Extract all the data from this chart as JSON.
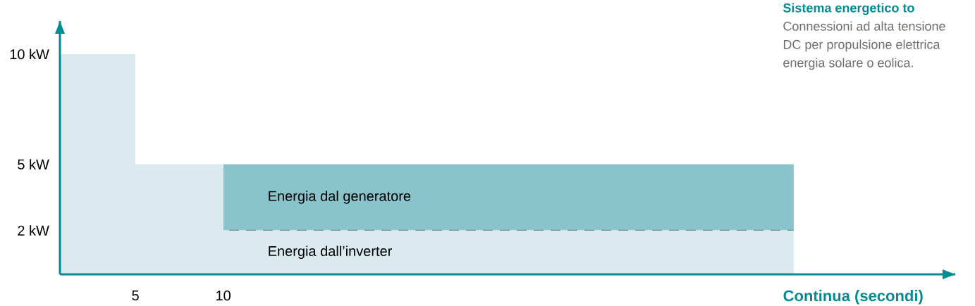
{
  "chart_data": {
    "type": "area",
    "stacked": true,
    "title": "Sistema energetico to",
    "annotations": [
      "Connessioni ad alta tensione",
      "DC per propulsione elettrica",
      "energia solare o eolica."
    ],
    "xlabel": "Continua (secondi)",
    "x": [
      0.7,
      5,
      10,
      42.5
    ],
    "series": [
      {
        "name": "Energia dall’inverter",
        "color": "#dbeaee",
        "values": [
          10,
          5,
          2,
          2
        ]
      },
      {
        "name": "Energia dal generatore",
        "color": "#89c4cd",
        "values": [
          0,
          0,
          3,
          3
        ]
      }
    ],
    "xlim": [
      0.7,
      51.7
    ],
    "ylim": [
      0,
      11.5
    ],
    "xticks": [
      5,
      10
    ],
    "yticks": [
      {
        "value": 2,
        "label": "2 kW"
      },
      {
        "value": 5,
        "label": "5 kW"
      },
      {
        "value": 10,
        "label": "10 kW"
      }
    ],
    "ref_lines": [
      {
        "axis": "y",
        "value": 2,
        "color": "#000000",
        "line_style": "dashed"
      }
    ],
    "grid": false
  }
}
